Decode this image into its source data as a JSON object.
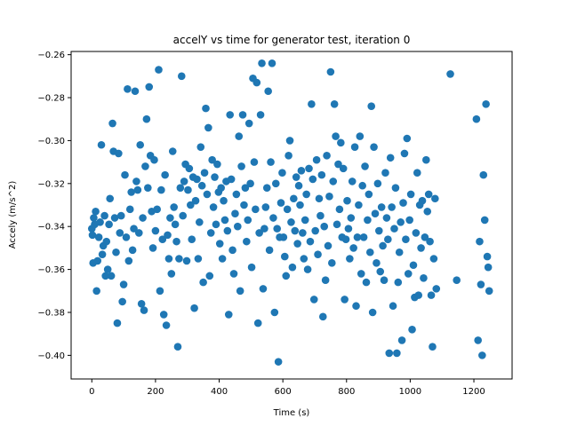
{
  "chart_data": {
    "type": "scatter",
    "title": "accelY vs time for generator test, iteration 0",
    "xlabel": "Time (s)",
    "ylabel": "Accely (m/s^2)",
    "xlim": [
      -65,
      1320
    ],
    "ylim": [
      -0.411,
      -0.2585
    ],
    "xticks": [
      0,
      200,
      400,
      600,
      800,
      1000,
      1200
    ],
    "xtick_labels": [
      "0",
      "200",
      "400",
      "600",
      "800",
      "1000",
      "1200"
    ],
    "yticks": [
      -0.4,
      -0.38,
      -0.36,
      -0.34,
      -0.32,
      -0.3,
      -0.28,
      -0.26
    ],
    "ytick_labels": [
      "−0.40",
      "−0.38",
      "−0.36",
      "−0.34",
      "−0.32",
      "−0.30",
      "−0.28",
      "−0.26"
    ],
    "grid": false,
    "marker_color": "#1f77b4",
    "series": [
      {
        "points": [
          [
            0,
            -0.341
          ],
          [
            2,
            -0.344
          ],
          [
            4,
            -0.357
          ],
          [
            6,
            -0.336
          ],
          [
            9,
            -0.339
          ],
          [
            12,
            -0.333
          ],
          [
            15,
            -0.37
          ],
          [
            18,
            -0.356
          ],
          [
            22,
            -0.345
          ],
          [
            26,
            -0.338
          ],
          [
            30,
            -0.302
          ],
          [
            33,
            -0.353
          ],
          [
            36,
            -0.349
          ],
          [
            40,
            -0.335
          ],
          [
            43,
            -0.363
          ],
          [
            46,
            -0.347
          ],
          [
            50,
            -0.36
          ],
          [
            54,
            -0.339
          ],
          [
            57,
            -0.327
          ],
          [
            61,
            -0.363
          ],
          [
            65,
            -0.292
          ],
          [
            68,
            -0.305
          ],
          [
            72,
            -0.336
          ],
          [
            76,
            -0.352
          ],
          [
            80,
            -0.385
          ],
          [
            84,
            -0.306
          ],
          [
            88,
            -0.343
          ],
          [
            92,
            -0.335
          ],
          [
            96,
            -0.375
          ],
          [
            100,
            -0.367
          ],
          [
            104,
            -0.316
          ],
          [
            108,
            -0.345
          ],
          [
            112,
            -0.276
          ],
          [
            116,
            -0.356
          ],
          [
            120,
            -0.332
          ],
          [
            124,
            -0.324
          ],
          [
            128,
            -0.351
          ],
          [
            132,
            -0.341
          ],
          [
            136,
            -0.277
          ],
          [
            140,
            -0.319
          ],
          [
            144,
            -0.323
          ],
          [
            148,
            -0.343
          ],
          [
            152,
            -0.302
          ],
          [
            156,
            -0.376
          ],
          [
            160,
            -0.336
          ],
          [
            164,
            -0.379
          ],
          [
            168,
            -0.312
          ],
          [
            172,
            -0.29
          ],
          [
            176,
            -0.322
          ],
          [
            180,
            -0.275
          ],
          [
            184,
            -0.307
          ],
          [
            188,
            -0.333
          ],
          [
            192,
            -0.35
          ],
          [
            196,
            -0.309
          ],
          [
            200,
            -0.342
          ],
          [
            205,
            -0.332
          ],
          [
            210,
            -0.267
          ],
          [
            214,
            -0.37
          ],
          [
            218,
            -0.323
          ],
          [
            222,
            -0.346
          ],
          [
            226,
            -0.381
          ],
          [
            230,
            -0.316
          ],
          [
            234,
            -0.386
          ],
          [
            238,
            -0.344
          ],
          [
            242,
            -0.355
          ],
          [
            246,
            -0.336
          ],
          [
            250,
            -0.362
          ],
          [
            254,
            -0.305
          ],
          [
            258,
            -0.331
          ],
          [
            262,
            -0.339
          ],
          [
            266,
            -0.347
          ],
          [
            270,
            -0.396
          ],
          [
            274,
            -0.355
          ],
          [
            278,
            -0.322
          ],
          [
            282,
            -0.27
          ],
          [
            286,
            -0.335
          ],
          [
            290,
            -0.319
          ],
          [
            294,
            -0.311
          ],
          [
            298,
            -0.356
          ],
          [
            302,
            -0.323
          ],
          [
            306,
            -0.313
          ],
          [
            310,
            -0.33
          ],
          [
            314,
            -0.346
          ],
          [
            318,
            -0.317
          ],
          [
            322,
            -0.378
          ],
          [
            326,
            -0.328
          ],
          [
            330,
            -0.318
          ],
          [
            334,
            -0.355
          ],
          [
            338,
            -0.338
          ],
          [
            342,
            -0.303
          ],
          [
            346,
            -0.321
          ],
          [
            350,
            -0.366
          ],
          [
            354,
            -0.315
          ],
          [
            358,
            -0.285
          ],
          [
            362,
            -0.325
          ],
          [
            366,
            -0.294
          ],
          [
            370,
            -0.363
          ],
          [
            374,
            -0.343
          ],
          [
            378,
            -0.309
          ],
          [
            382,
            -0.331
          ],
          [
            386,
            -0.317
          ],
          [
            390,
            -0.339
          ],
          [
            394,
            -0.311
          ],
          [
            398,
            -0.324
          ],
          [
            402,
            -0.348
          ],
          [
            406,
            -0.322
          ],
          [
            410,
            -0.355
          ],
          [
            414,
            -0.328
          ],
          [
            418,
            -0.337
          ],
          [
            422,
            -0.319
          ],
          [
            426,
            -0.342
          ],
          [
            430,
            -0.381
          ],
          [
            434,
            -0.288
          ],
          [
            438,
            -0.318
          ],
          [
            442,
            -0.351
          ],
          [
            446,
            -0.362
          ],
          [
            450,
            -0.334
          ],
          [
            454,
            -0.325
          ],
          [
            458,
            -0.34
          ],
          [
            462,
            -0.298
          ],
          [
            466,
            -0.37
          ],
          [
            470,
            -0.312
          ],
          [
            474,
            -0.288
          ],
          [
            478,
            -0.33
          ],
          [
            482,
            -0.322
          ],
          [
            486,
            -0.347
          ],
          [
            490,
            -0.337
          ],
          [
            494,
            -0.292
          ],
          [
            498,
            -0.32
          ],
          [
            502,
            -0.359
          ],
          [
            506,
            -0.271
          ],
          [
            510,
            -0.31
          ],
          [
            514,
            -0.332
          ],
          [
            518,
            -0.273
          ],
          [
            522,
            -0.385
          ],
          [
            526,
            -0.343
          ],
          [
            530,
            -0.288
          ],
          [
            534,
            -0.264
          ],
          [
            538,
            -0.369
          ],
          [
            542,
            -0.341
          ],
          [
            546,
            -0.331
          ],
          [
            550,
            -0.322
          ],
          [
            554,
            -0.277
          ],
          [
            558,
            -0.351
          ],
          [
            562,
            -0.31
          ],
          [
            566,
            -0.264
          ],
          [
            570,
            -0.336
          ],
          [
            574,
            -0.38
          ],
          [
            578,
            -0.32
          ],
          [
            582,
            -0.341
          ],
          [
            586,
            -0.403
          ],
          [
            590,
            -0.345
          ],
          [
            594,
            -0.329
          ],
          [
            598,
            -0.315
          ],
          [
            602,
            -0.345
          ],
          [
            606,
            -0.354
          ],
          [
            610,
            -0.363
          ],
          [
            614,
            -0.332
          ],
          [
            618,
            -0.307
          ],
          [
            622,
            -0.3
          ],
          [
            626,
            -0.338
          ],
          [
            630,
            -0.359
          ],
          [
            634,
            -0.327
          ],
          [
            638,
            -0.342
          ],
          [
            642,
            -0.317
          ],
          [
            646,
            -0.348
          ],
          [
            650,
            -0.321
          ],
          [
            654,
            -0.33
          ],
          [
            658,
            -0.314
          ],
          [
            662,
            -0.343
          ],
          [
            666,
            -0.355
          ],
          [
            670,
            -0.337
          ],
          [
            674,
            -0.325
          ],
          [
            678,
            -0.36
          ],
          [
            682,
            -0.313
          ],
          [
            686,
            -0.347
          ],
          [
            690,
            -0.283
          ],
          [
            694,
            -0.318
          ],
          [
            698,
            -0.374
          ],
          [
            702,
            -0.342
          ],
          [
            706,
            -0.309
          ],
          [
            710,
            -0.353
          ],
          [
            714,
            -0.327
          ],
          [
            718,
            -0.335
          ],
          [
            722,
            -0.316
          ],
          [
            726,
            -0.382
          ],
          [
            730,
            -0.34
          ],
          [
            734,
            -0.365
          ],
          [
            738,
            -0.307
          ],
          [
            742,
            -0.349
          ],
          [
            746,
            -0.326
          ],
          [
            750,
            -0.268
          ],
          [
            754,
            -0.357
          ],
          [
            758,
            -0.319
          ],
          [
            762,
            -0.283
          ],
          [
            766,
            -0.298
          ],
          [
            770,
            -0.339
          ],
          [
            774,
            -0.311
          ],
          [
            778,
            -0.332
          ],
          [
            782,
            -0.301
          ],
          [
            786,
            -0.345
          ],
          [
            790,
            -0.313
          ],
          [
            794,
            -0.374
          ],
          [
            798,
            -0.346
          ],
          [
            802,
            -0.328
          ],
          [
            806,
            -0.341
          ],
          [
            810,
            -0.355
          ],
          [
            814,
            -0.336
          ],
          [
            818,
            -0.319
          ],
          [
            822,
            -0.35
          ],
          [
            826,
            -0.303
          ],
          [
            830,
            -0.377
          ],
          [
            834,
            -0.345
          ],
          [
            838,
            -0.33
          ],
          [
            842,
            -0.298
          ],
          [
            846,
            -0.362
          ],
          [
            850,
            -0.321
          ],
          [
            854,
            -0.345
          ],
          [
            858,
            -0.312
          ],
          [
            862,
            -0.366
          ],
          [
            866,
            -0.337
          ],
          [
            870,
            -0.325
          ],
          [
            874,
            -0.352
          ],
          [
            878,
            -0.284
          ],
          [
            882,
            -0.38
          ],
          [
            886,
            -0.303
          ],
          [
            890,
            -0.334
          ],
          [
            894,
            -0.357
          ],
          [
            898,
            -0.32
          ],
          [
            902,
            -0.342
          ],
          [
            906,
            -0.361
          ],
          [
            910,
            -0.331
          ],
          [
            914,
            -0.349
          ],
          [
            918,
            -0.365
          ],
          [
            922,
            -0.315
          ],
          [
            926,
            -0.336
          ],
          [
            930,
            -0.346
          ],
          [
            934,
            -0.399
          ],
          [
            938,
            -0.308
          ],
          [
            942,
            -0.331
          ],
          [
            946,
            -0.377
          ],
          [
            950,
            -0.341
          ],
          [
            954,
            -0.322
          ],
          [
            958,
            -0.399
          ],
          [
            962,
            -0.366
          ],
          [
            966,
            -0.352
          ],
          [
            970,
            -0.338
          ],
          [
            974,
            -0.393
          ],
          [
            978,
            -0.329
          ],
          [
            982,
            -0.306
          ],
          [
            986,
            -0.346
          ],
          [
            990,
            -0.299
          ],
          [
            994,
            -0.362
          ],
          [
            998,
            -0.337
          ],
          [
            1002,
            -0.325
          ],
          [
            1006,
            -0.388
          ],
          [
            1010,
            -0.358
          ],
          [
            1014,
            -0.373
          ],
          [
            1018,
            -0.343
          ],
          [
            1022,
            -0.315
          ],
          [
            1026,
            -0.372
          ],
          [
            1030,
            -0.33
          ],
          [
            1034,
            -0.35
          ],
          [
            1038,
            -0.328
          ],
          [
            1042,
            -0.364
          ],
          [
            1046,
            -0.345
          ],
          [
            1050,
            -0.309
          ],
          [
            1054,
            -0.333
          ],
          [
            1058,
            -0.325
          ],
          [
            1062,
            -0.347
          ],
          [
            1066,
            -0.372
          ],
          [
            1070,
            -0.396
          ],
          [
            1074,
            -0.355
          ],
          [
            1078,
            -0.327
          ],
          [
            1082,
            -0.369
          ],
          [
            1126,
            -0.269
          ],
          [
            1146,
            -0.365
          ],
          [
            1208,
            -0.29
          ],
          [
            1213,
            -0.393
          ],
          [
            1218,
            -0.347
          ],
          [
            1222,
            -0.367
          ],
          [
            1226,
            -0.4
          ],
          [
            1230,
            -0.316
          ],
          [
            1234,
            -0.337
          ],
          [
            1238,
            -0.283
          ],
          [
            1242,
            -0.354
          ],
          [
            1245,
            -0.359
          ],
          [
            1248,
            -0.37
          ]
        ]
      }
    ]
  }
}
